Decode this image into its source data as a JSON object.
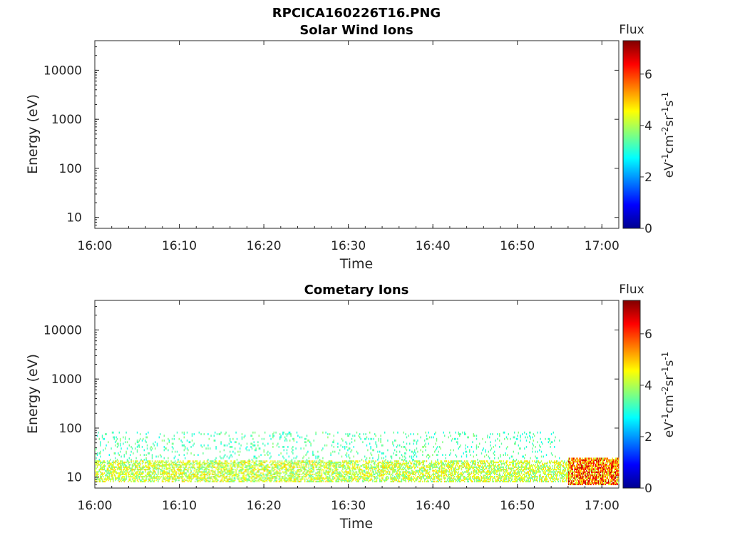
{
  "figure_title": "RPCICA160226T16.PNG",
  "chart_data": [
    {
      "type": "heatmap",
      "title": "Solar Wind Ions",
      "xlabel": "Time",
      "ylabel": "Energy (eV)",
      "x_ticks": [
        "16:00",
        "16:10",
        "16:20",
        "16:30",
        "16:40",
        "16:50",
        "17:00"
      ],
      "xlim": [
        "16:00",
        "17:02"
      ],
      "y_scale": "log",
      "y_ticks": [
        "10",
        "100",
        "1000",
        "10000"
      ],
      "ylim": [
        6,
        40000
      ],
      "colorbar": {
        "title": "Flux",
        "label": "eV-1cm-2sr-1s-1",
        "ticks": [
          "0",
          "2",
          "4",
          "6"
        ],
        "range": [
          0,
          7.3
        ],
        "colormap": "jet"
      },
      "data": []
    },
    {
      "type": "heatmap",
      "title": "Cometary Ions",
      "xlabel": "Time",
      "ylabel": "Energy (eV)",
      "x_ticks": [
        "16:00",
        "16:10",
        "16:20",
        "16:30",
        "16:40",
        "16:50",
        "17:00"
      ],
      "xlim": [
        "16:00",
        "17:02"
      ],
      "y_scale": "log",
      "y_ticks": [
        "10",
        "100",
        "1000",
        "10000"
      ],
      "ylim": [
        6,
        40000
      ],
      "colorbar": {
        "title": "Flux",
        "label": "eV-1cm-2sr-1s-1",
        "ticks": [
          "0",
          "2",
          "4",
          "6"
        ],
        "range": [
          0,
          7.3
        ],
        "colormap": "jet"
      },
      "bands": [
        {
          "time_start": "16:00",
          "time_end": "16:56",
          "energy_min": 8,
          "energy_max": 22,
          "flux_min": 3.3,
          "flux_max": 5.0
        },
        {
          "time_start": "16:00",
          "time_end": "16:55",
          "energy_min": 22,
          "energy_max": 85,
          "flux_min": 2.8,
          "flux_max": 3.8
        },
        {
          "time_start": "16:56",
          "time_end": "17:02",
          "energy_min": 7,
          "energy_max": 25,
          "flux_min": 4.0,
          "flux_max": 7.0
        }
      ]
    }
  ]
}
